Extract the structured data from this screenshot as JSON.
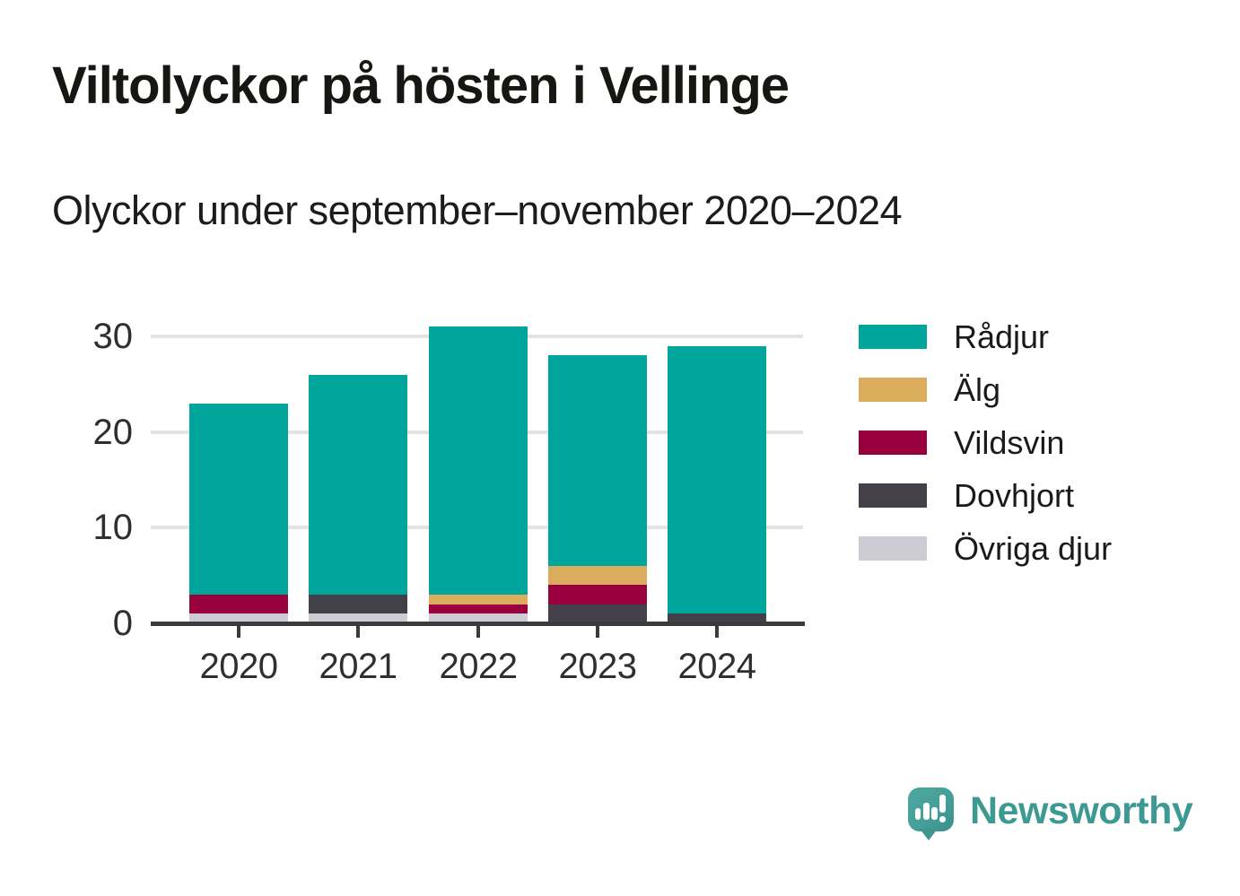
{
  "header": {
    "title": "Viltolyckor på hösten i Vellinge",
    "subtitle": "Olyckor under september–november 2020–2024"
  },
  "chart_data": {
    "type": "bar",
    "stacked": true,
    "title": "Viltolyckor på hösten i Vellinge",
    "subtitle": "Olyckor under september–november 2020–2024",
    "categories": [
      "2020",
      "2021",
      "2022",
      "2023",
      "2024"
    ],
    "series": [
      {
        "name": "Rådjur",
        "color": "#00a59b",
        "values": [
          20,
          23,
          28,
          22,
          28
        ]
      },
      {
        "name": "Älg",
        "color": "#dbac5c",
        "values": [
          0,
          0,
          1,
          2,
          0
        ]
      },
      {
        "name": "Vildsvin",
        "color": "#98003e",
        "values": [
          2,
          0,
          1,
          2,
          0
        ]
      },
      {
        "name": "Dovhjort",
        "color": "#434049",
        "values": [
          0,
          2,
          0,
          2,
          1
        ]
      },
      {
        "name": "Övriga djur",
        "color": "#cdcbd3",
        "values": [
          1,
          1,
          1,
          0,
          0
        ]
      }
    ],
    "stack_order_bottom_to_top": [
      "Övriga djur",
      "Dovhjort",
      "Vildsvin",
      "Älg",
      "Rådjur"
    ],
    "totals": [
      23,
      26,
      31,
      28,
      29
    ],
    "xlabel": "",
    "ylabel": "",
    "y_ticks": [
      0,
      10,
      20,
      30
    ],
    "ylim": [
      0,
      31
    ],
    "grid": "horizontal",
    "legend_position": "right",
    "axis_color": "#3b3b3b",
    "gridline_color": "#e3e3e3"
  },
  "footer": {
    "brand": "Newsworthy",
    "brand_color": "#3d9a93"
  }
}
